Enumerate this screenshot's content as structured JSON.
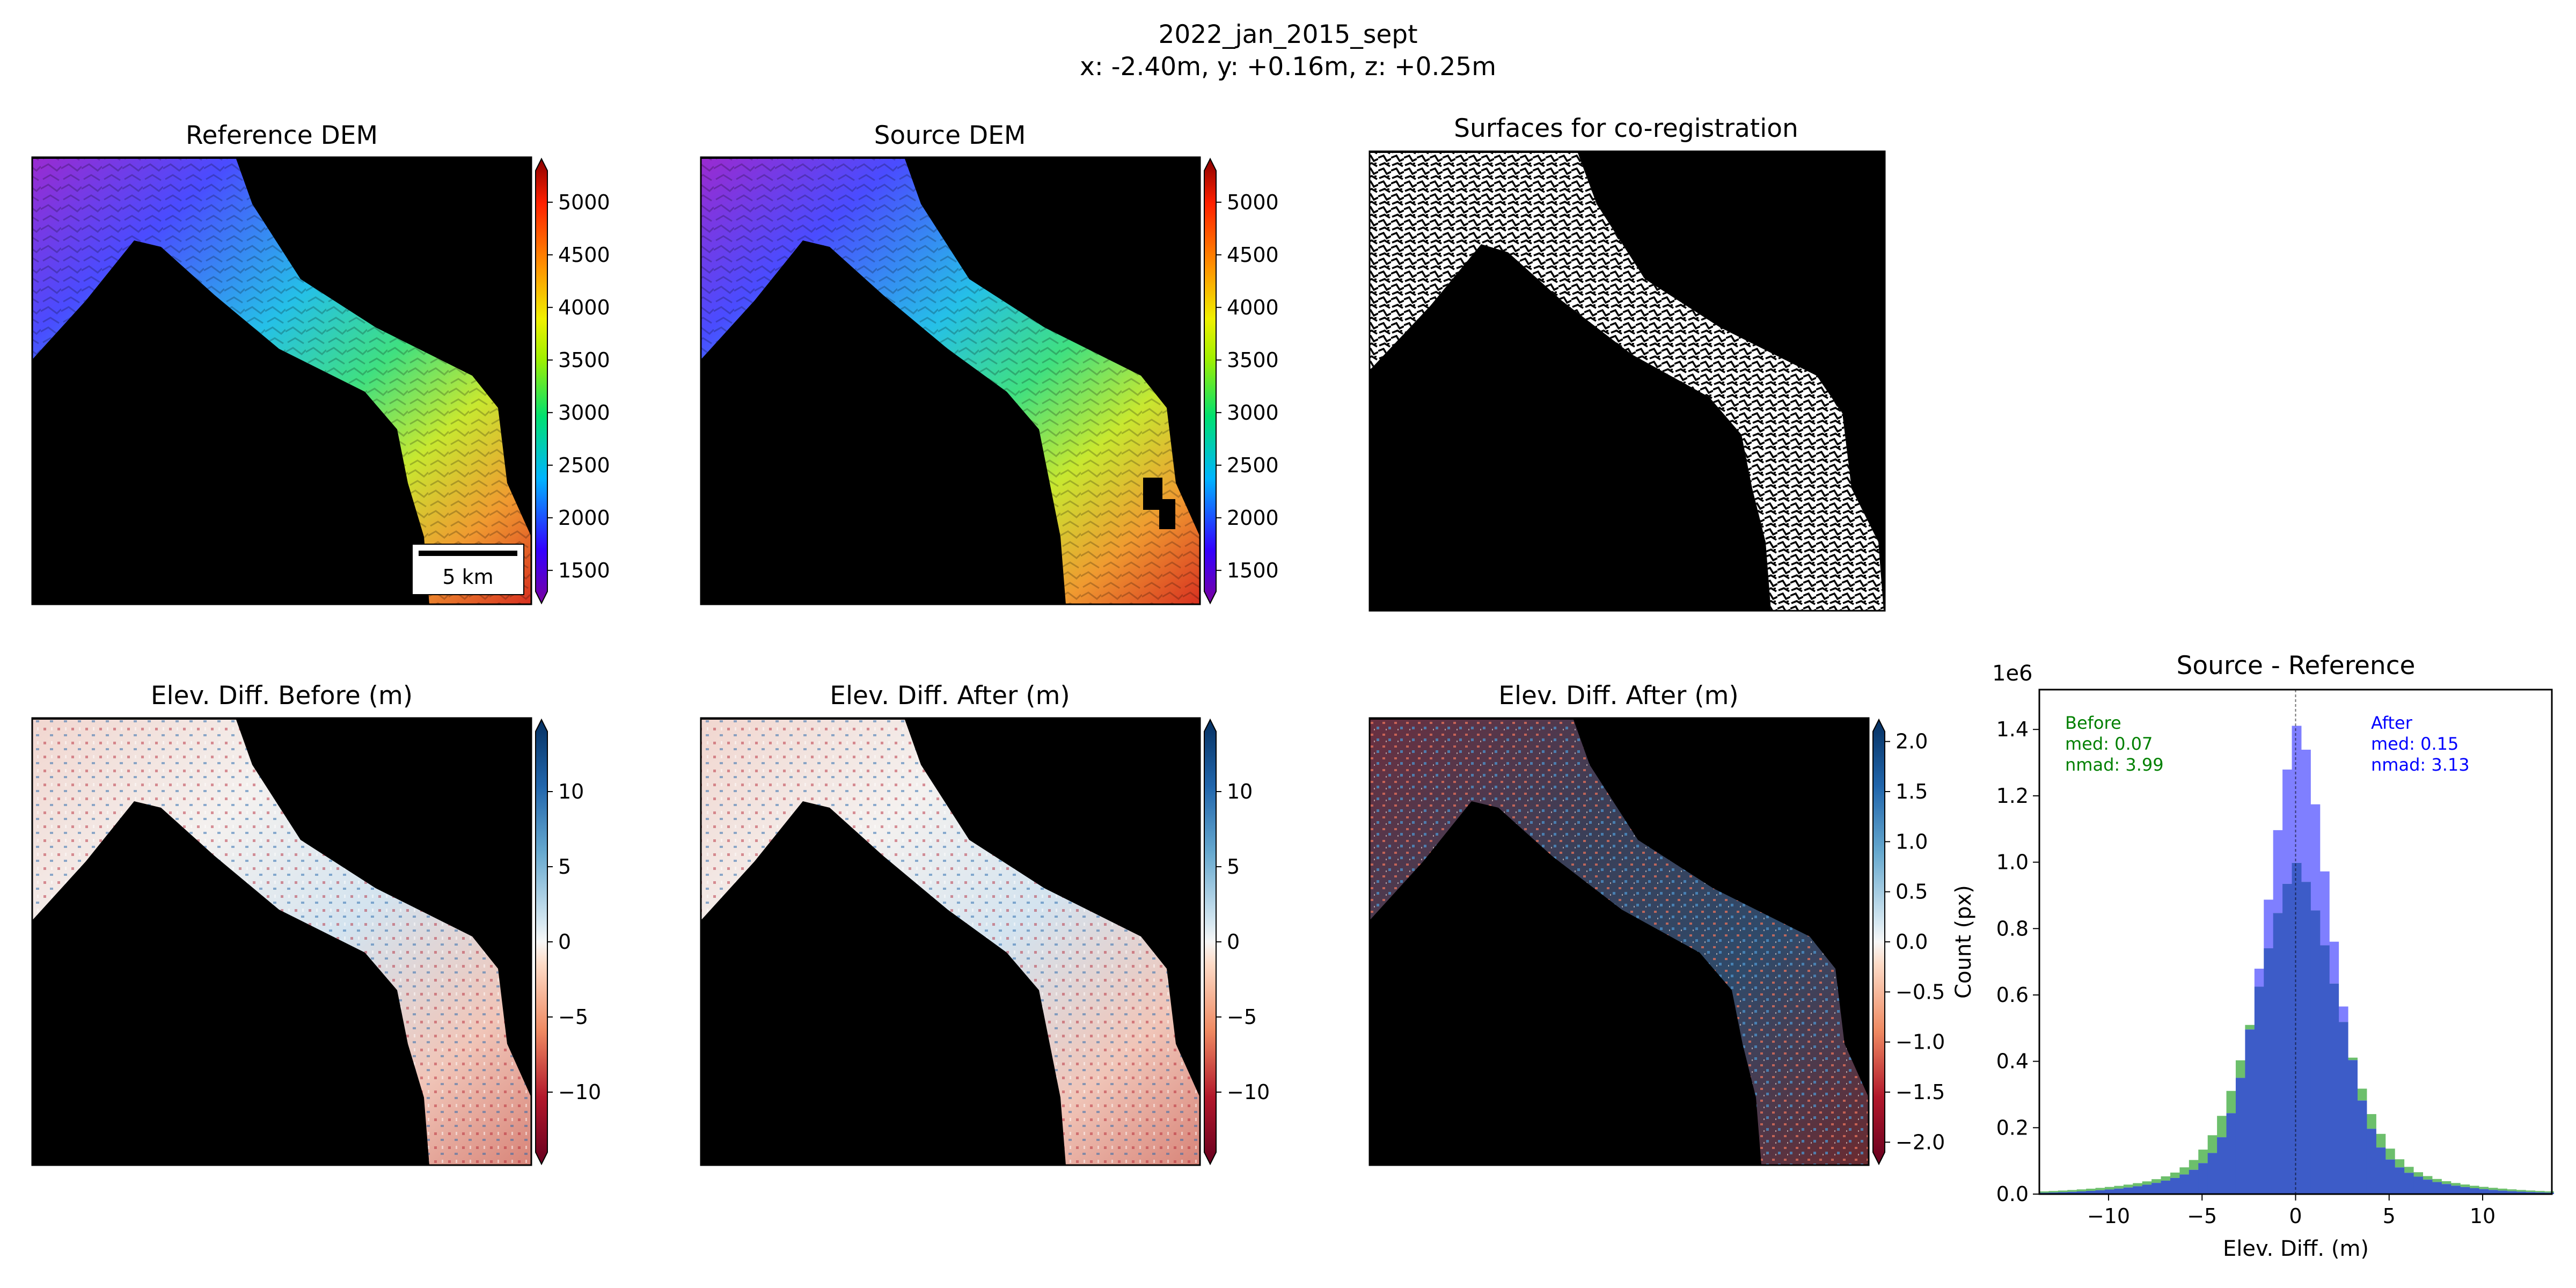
{
  "figure": {
    "title": "2022_jan_2015_sept",
    "subtitle": "x: -2.40m, y: +0.16m, z: +0.25m"
  },
  "colors": {
    "mask": "#000000",
    "before": "#2ca02c",
    "after": "#0000ff",
    "before_fill": "#6cbf6c",
    "after_fill": "#7f7fff",
    "overlap_fill": "#3d5cc8"
  },
  "chart_data": [
    {
      "type": "heatmap",
      "title": "Reference DEM",
      "colormap": "terrain",
      "colorbar": {
        "ticks": [
          1500,
          2000,
          2500,
          3000,
          3500,
          4000,
          4500,
          5000
        ],
        "ticklabels": [
          "1500",
          "2000",
          "2500",
          "3000",
          "3500",
          "4000",
          "4500",
          "5000"
        ],
        "range": [
          1300,
          5300
        ]
      },
      "scalebar": "5 km"
    },
    {
      "type": "heatmap",
      "title": "Source DEM",
      "colormap": "terrain",
      "colorbar": {
        "ticks": [
          1500,
          2000,
          2500,
          3000,
          3500,
          4000,
          4500,
          5000
        ],
        "ticklabels": [
          "1500",
          "2000",
          "2500",
          "3000",
          "3500",
          "4000",
          "4500",
          "5000"
        ],
        "range": [
          1300,
          5300
        ]
      }
    },
    {
      "type": "heatmap",
      "title": "Surfaces for co-registration",
      "colormap": "binary"
    },
    {
      "type": "heatmap",
      "title": "Elev. Diff. Before (m)",
      "colormap": "RdBu",
      "colorbar": {
        "ticks": [
          -10,
          -5,
          0,
          5,
          10
        ],
        "ticklabels": [
          "−10",
          "−5",
          "0",
          "5",
          "10"
        ],
        "range": [
          -14,
          14
        ]
      }
    },
    {
      "type": "heatmap",
      "title": "Elev. Diff. After (m)",
      "colormap": "RdBu",
      "colorbar": {
        "ticks": [
          -10,
          -5,
          0,
          5,
          10
        ],
        "ticklabels": [
          "−10",
          "−5",
          "0",
          "5",
          "10"
        ],
        "range": [
          -14,
          14
        ]
      }
    },
    {
      "type": "heatmap",
      "title": "Elev. Diff. After (m)",
      "colormap": "RdBu",
      "colorbar": {
        "ticks": [
          -2,
          -1.5,
          -1,
          -0.5,
          0,
          0.5,
          1,
          1.5,
          2
        ],
        "ticklabels": [
          "−2.0",
          "−1.5",
          "−1.0",
          "−0.5",
          "0.0",
          "0.5",
          "1.0",
          "1.5",
          "2.0"
        ],
        "range": [
          -2.1,
          2.1
        ]
      }
    },
    {
      "type": "bar",
      "title": "Source - Reference",
      "xlabel": "Elev. Diff. (m)",
      "ylabel": "Count (px)",
      "y_multiplier": "1e6",
      "xlim": [
        -13.7,
        13.7
      ],
      "ylim": [
        0,
        1.52
      ],
      "xticks": [
        -10,
        -5,
        0,
        5,
        10
      ],
      "xticklabels": [
        "−10",
        "−5",
        "0",
        "5",
        "10"
      ],
      "yticks": [
        0,
        0.2,
        0.4,
        0.6,
        0.8,
        1.0,
        1.2,
        1.4
      ],
      "yticklabels": [
        "0.0",
        "0.2",
        "0.4",
        "0.6",
        "0.8",
        "1.0",
        "1.2",
        "1.4"
      ],
      "bin_width": 0.5,
      "series": [
        {
          "name": "Before",
          "median": 0.07,
          "nmad": 3.99,
          "median_label": "med: 0.07",
          "nmad_label": "nmad: 3.99",
          "peak": 1.0,
          "width": 3.99
        },
        {
          "name": "After",
          "median": 0.15,
          "nmad": 3.13,
          "median_label": "med: 0.15",
          "nmad_label": "nmad: 3.13",
          "peak": 1.43,
          "width": 3.13
        }
      ]
    }
  ]
}
